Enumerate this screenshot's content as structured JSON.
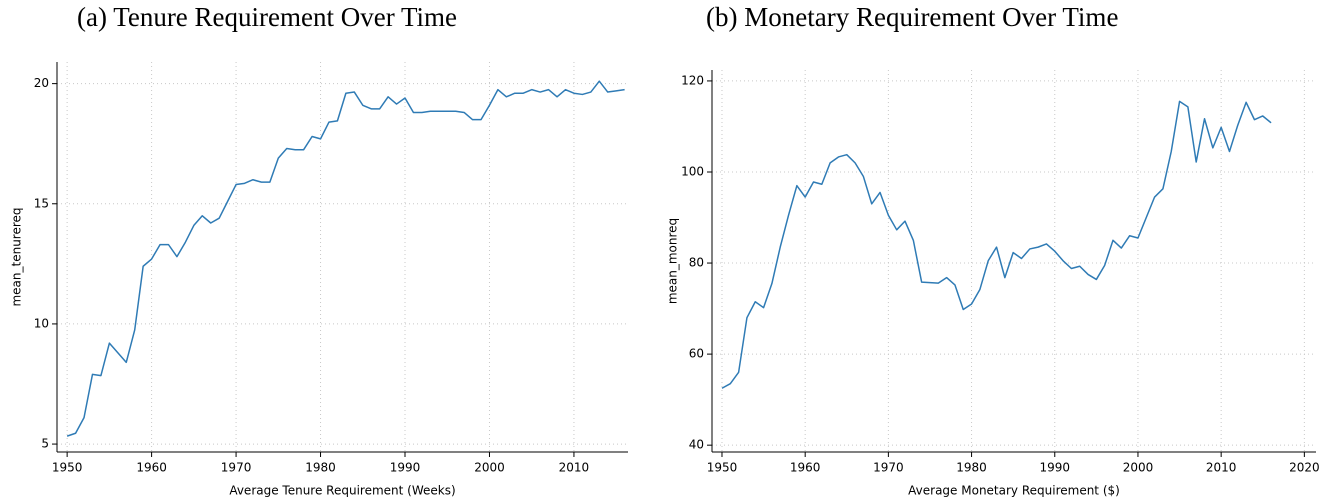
{
  "chart_data": [
    {
      "type": "line",
      "title": "(a) Tenure Requirement Over Time",
      "x_label": "Average Tenure Requirement (Weeks)",
      "y_label": "mean_tenurereq",
      "x": [
        1950,
        1951,
        1952,
        1953,
        1954,
        1955,
        1956,
        1957,
        1958,
        1959,
        1960,
        1961,
        1962,
        1963,
        1964,
        1965,
        1966,
        1967,
        1968,
        1969,
        1970,
        1971,
        1972,
        1973,
        1974,
        1975,
        1976,
        1977,
        1978,
        1979,
        1980,
        1981,
        1982,
        1983,
        1984,
        1985,
        1986,
        1987,
        1988,
        1989,
        1990,
        1991,
        1992,
        1993,
        1994,
        1995,
        1996,
        1997,
        1998,
        1999,
        2000,
        2001,
        2002,
        2003,
        2004,
        2005,
        2006,
        2007,
        2008,
        2009,
        2010,
        2011,
        2012,
        2013,
        2014,
        2015,
        2016
      ],
      "series": [
        {
          "name": "mean_tenurereq",
          "color": "#2f7bb5",
          "values": [
            5.33,
            5.45,
            6.1,
            7.9,
            7.85,
            9.2,
            8.8,
            8.4,
            9.75,
            12.4,
            12.7,
            13.3,
            13.3,
            12.8,
            13.4,
            14.1,
            14.5,
            14.2,
            14.4,
            15.1,
            15.8,
            15.85,
            16.0,
            15.9,
            15.9,
            16.9,
            17.3,
            17.25,
            17.25,
            17.8,
            17.7,
            18.4,
            18.45,
            19.6,
            19.65,
            19.1,
            18.95,
            18.95,
            19.45,
            19.15,
            19.4,
            18.8,
            18.8,
            18.85,
            18.85,
            18.85,
            18.85,
            18.8,
            18.5,
            18.5,
            19.1,
            19.75,
            19.45,
            19.6,
            19.6,
            19.75,
            19.65,
            19.75,
            19.45,
            19.75,
            19.6,
            19.55,
            19.65,
            20.1,
            19.65,
            19.7,
            19.75
          ]
        }
      ],
      "xlim": [
        1948.8,
        2016.4
      ],
      "xticks": [
        1950,
        1960,
        1970,
        1980,
        1990,
        2000,
        2010
      ],
      "ylim": [
        4.67,
        20.9
      ],
      "yticks": [
        5,
        10,
        15,
        20
      ],
      "grid": true
    },
    {
      "type": "line",
      "title": "(b) Monetary Requirement Over Time",
      "x_label": "Average Monetary Requirement ($)",
      "y_label": "mean_monreq",
      "x": [
        1950,
        1951,
        1952,
        1953,
        1954,
        1955,
        1956,
        1957,
        1958,
        1959,
        1960,
        1961,
        1962,
        1963,
        1964,
        1965,
        1966,
        1967,
        1968,
        1969,
        1970,
        1971,
        1972,
        1973,
        1974,
        1975,
        1976,
        1977,
        1978,
        1979,
        1980,
        1981,
        1982,
        1983,
        1984,
        1985,
        1986,
        1987,
        1988,
        1989,
        1990,
        1991,
        1992,
        1993,
        1994,
        1995,
        1996,
        1997,
        1998,
        1999,
        2000,
        2001,
        2002,
        2003,
        2004,
        2005,
        2006,
        2007,
        2008,
        2009,
        2010,
        2011,
        2012,
        2013,
        2014,
        2015,
        2016
      ],
      "series": [
        {
          "name": "mean_monreq",
          "color": "#2f7bb5",
          "values": [
            52.5,
            53.5,
            56,
            68,
            71.5,
            70.2,
            75.5,
            83.5,
            90.5,
            97,
            94.5,
            97.8,
            97.3,
            102,
            103.3,
            103.8,
            102,
            99,
            93,
            95.5,
            90.5,
            87.3,
            89.2,
            85,
            75.8,
            75.7,
            75.6,
            76.8,
            75.2,
            69.8,
            71,
            74.2,
            80.5,
            83.5,
            76.8,
            82.3,
            81,
            83.1,
            83.5,
            84.2,
            82.6,
            80.5,
            78.8,
            79.3,
            77.5,
            76.4,
            79.5,
            85,
            83.3,
            86,
            85.5,
            90,
            94.5,
            96.3,
            104.5,
            115.5,
            114.3,
            102.2,
            111.7,
            105.3,
            109.8,
            104.5,
            110.3,
            115.3,
            111.5,
            112.3,
            110.8
          ]
        }
      ],
      "xlim": [
        1948.8,
        2021.4
      ],
      "xticks": [
        1950,
        1960,
        1970,
        1980,
        1990,
        2000,
        2010,
        2020
      ],
      "ylim": [
        38.5,
        122.4
      ],
      "yticks": [
        40,
        60,
        80,
        100,
        120
      ],
      "grid": true
    }
  ]
}
